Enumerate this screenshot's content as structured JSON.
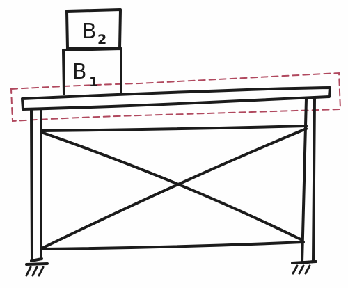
{
  "blocks": [
    {
      "letter": "B",
      "subscript": "1"
    },
    {
      "letter": "B",
      "subscript": "2"
    }
  ],
  "colors": {
    "ink": "#1b1b1b",
    "highlight": "#b0485e",
    "background": "#fefefe"
  }
}
